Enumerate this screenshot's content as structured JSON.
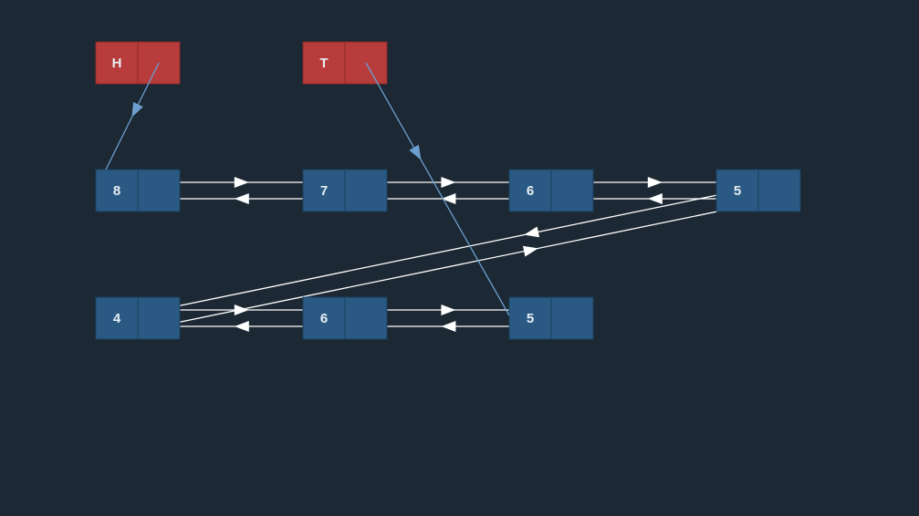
{
  "colors": {
    "background": "#1c2833",
    "node_fill": "#2a5a83",
    "node_stroke": "#1b3f5e",
    "pointer_fill": "#b83c3c",
    "pointer_stroke": "#8a2a2a",
    "link_line": "#ffffff",
    "pointer_line": "#6b9fcf",
    "label_text": "#e8eef3"
  },
  "pointers": [
    {
      "id": "head",
      "label": "H",
      "target": "n8"
    },
    {
      "id": "tail",
      "label": "T",
      "target": "n5b"
    }
  ],
  "nodes": [
    {
      "id": "n8",
      "value": "8"
    },
    {
      "id": "n7",
      "value": "7"
    },
    {
      "id": "n6a",
      "value": "6"
    },
    {
      "id": "n5a",
      "value": "5"
    },
    {
      "id": "n4",
      "value": "4"
    },
    {
      "id": "n6b",
      "value": "6"
    },
    {
      "id": "n5b",
      "value": "5"
    }
  ],
  "links": [
    {
      "from": "n8",
      "to": "n7",
      "bidirectional": true
    },
    {
      "from": "n7",
      "to": "n6a",
      "bidirectional": true
    },
    {
      "from": "n6a",
      "to": "n5a",
      "bidirectional": true
    },
    {
      "from": "n5a",
      "to": "n4",
      "bidirectional": true
    },
    {
      "from": "n4",
      "to": "n6b",
      "bidirectional": true
    },
    {
      "from": "n6b",
      "to": "n5b",
      "bidirectional": true
    }
  ]
}
